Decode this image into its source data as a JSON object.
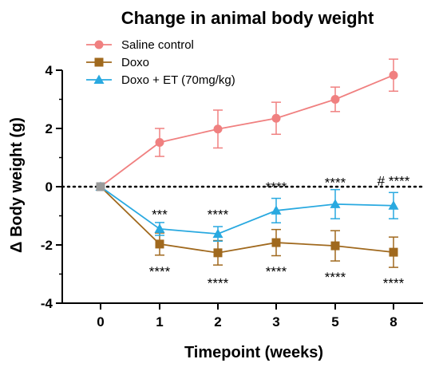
{
  "chart_data": {
    "type": "line",
    "title": "Change in animal body weight",
    "xlabel": "Timepoint (weeks)",
    "ylabel": "Δ  Body weight (g)",
    "categories": [
      "0",
      "1",
      "2",
      "3",
      "5",
      "8"
    ],
    "ylim": [
      -4,
      4
    ],
    "yticks": [
      -4,
      -2,
      0,
      2,
      4
    ],
    "zero_reference_line": true,
    "grid": false,
    "legend_position": "top-left",
    "series": [
      {
        "name": "Saline control",
        "color": "#f08080",
        "marker": "circle",
        "values": [
          0,
          1.52,
          1.98,
          2.35,
          3.0,
          3.83
        ],
        "errors": [
          0,
          0.48,
          0.65,
          0.55,
          0.42,
          0.55
        ]
      },
      {
        "name": "Doxo",
        "color": "#a0691e",
        "marker": "square",
        "values": [
          0,
          -1.97,
          -2.27,
          -1.92,
          -2.03,
          -2.25
        ],
        "errors": [
          0,
          0.38,
          0.42,
          0.45,
          0.52,
          0.52
        ]
      },
      {
        "name": "Doxo + ET (70mg/kg)",
        "color": "#29a9e0",
        "marker": "triangle",
        "values": [
          0,
          -1.45,
          -1.62,
          -0.82,
          -0.6,
          -0.65
        ],
        "errors": [
          0,
          0.22,
          0.25,
          0.42,
          0.5,
          0.45
        ]
      }
    ],
    "annotations": [
      {
        "category": "1",
        "y": -0.95,
        "text": "***"
      },
      {
        "category": "2",
        "y": -0.95,
        "text": "****"
      },
      {
        "category": "3",
        "y": 0,
        "text": "****"
      },
      {
        "category": "5",
        "y": 0.15,
        "text": "****"
      },
      {
        "category": "8",
        "y": 0.2,
        "text": "# ****"
      },
      {
        "category": "1",
        "y": -2.9,
        "text": "****"
      },
      {
        "category": "2",
        "y": -3.3,
        "text": "****"
      },
      {
        "category": "3",
        "y": -2.9,
        "text": "****"
      },
      {
        "category": "5",
        "y": -3.1,
        "text": "****"
      },
      {
        "category": "8",
        "y": -3.3,
        "text": "****"
      }
    ]
  }
}
